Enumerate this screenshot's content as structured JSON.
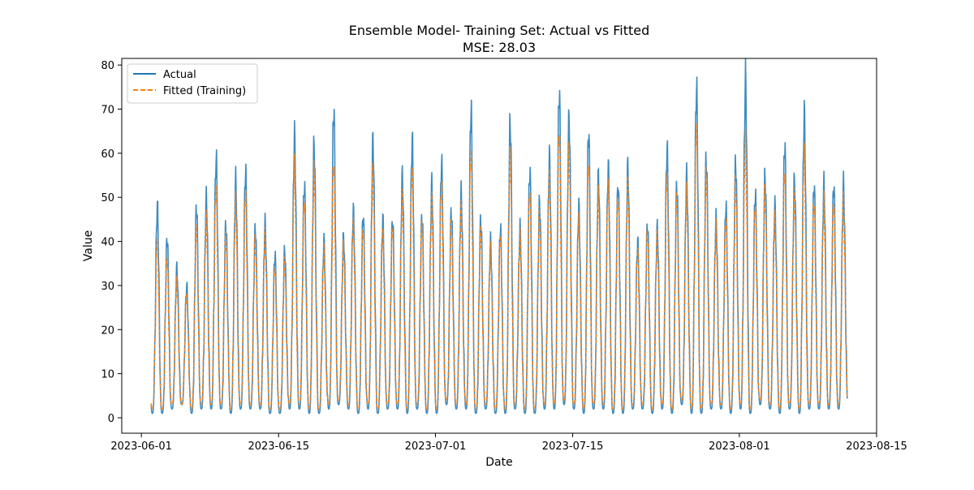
{
  "chart_data": {
    "type": "line",
    "title": "Ensemble Model- Training Set: Actual vs Fitted",
    "subtitle": "MSE: 28.03",
    "xlabel": "Date",
    "ylabel": "Value",
    "x_range": [
      "2023-05-30",
      "2023-08-15"
    ],
    "xlim_dates": [
      "2023-05-30",
      "2023-08-15"
    ],
    "ylim": [
      -3.5,
      81.5
    ],
    "x_tick_labels": [
      "2023-06-01",
      "2023-06-15",
      "2023-07-01",
      "2023-07-15",
      "2023-08-01",
      "2023-08-15"
    ],
    "y_tick_values": [
      0,
      10,
      20,
      30,
      40,
      50,
      60,
      70,
      80
    ],
    "y_tick_labels": [
      "0",
      "10",
      "20",
      "30",
      "40",
      "50",
      "60",
      "70",
      "80"
    ],
    "grid": false,
    "legend_position": "upper-left",
    "series": [
      {
        "name": "Actual",
        "color": "#1f77b4",
        "style": "solid",
        "x_start": "2023-06-02",
        "x_end": "2023-08-12",
        "daily_peaks": [
          48,
          41,
          34,
          30,
          48,
          50,
          59,
          44,
          54,
          56,
          43,
          44,
          37,
          38,
          64,
          53,
          62,
          40,
          70,
          41,
          47,
          46,
          63,
          45,
          45,
          55,
          63,
          46,
          53,
          58,
          47,
          51,
          70,
          45,
          40,
          43,
          67,
          43,
          56,
          49,
          59,
          74,
          68,
          48,
          65,
          55,
          57,
          53,
          57,
          40,
          44,
          43,
          61,
          53,
          55,
          75,
          59,
          45,
          48,
          58,
          77,
          51,
          55,
          48,
          62,
          54,
          69,
          53
        ],
        "daily_troughs": [
          1,
          1,
          2,
          3,
          1,
          2,
          2,
          2,
          1,
          2,
          2,
          2,
          1,
          1,
          2,
          2,
          1,
          1,
          2,
          3,
          2,
          1,
          2,
          1,
          2,
          2,
          1,
          2,
          1,
          1,
          3,
          2,
          2,
          1,
          2,
          1,
          1,
          2,
          1,
          1,
          2,
          2,
          3,
          2,
          1,
          2,
          2,
          1,
          1,
          2,
          2,
          1,
          2,
          1,
          3,
          1,
          1,
          2,
          2,
          1,
          2,
          1,
          3,
          2,
          1,
          2,
          1,
          2
        ]
      },
      {
        "name": "Fitted (Training)",
        "color": "#ff7f0e",
        "style": "dashed",
        "x_start": "2023-06-02",
        "x_end": "2023-08-12",
        "daily_peaks": [
          40,
          36,
          31,
          28,
          43,
          45,
          52,
          41,
          49,
          51,
          40,
          41,
          34,
          35,
          57,
          49,
          56,
          38,
          58,
          39,
          44,
          43,
          56,
          42,
          43,
          50,
          56,
          44,
          49,
          53,
          44,
          47,
          60,
          42,
          38,
          41,
          59,
          41,
          51,
          46,
          54,
          65,
          60,
          45,
          58,
          51,
          53,
          50,
          53,
          38,
          42,
          41,
          55,
          50,
          51,
          66,
          55,
          43,
          45,
          53,
          62,
          48,
          51,
          45,
          56,
          50,
          60,
          49
        ],
        "daily_troughs": [
          2,
          2,
          3,
          3,
          2,
          3,
          3,
          3,
          2,
          3,
          3,
          3,
          2,
          2,
          3,
          3,
          2,
          2,
          3,
          4,
          3,
          2,
          3,
          2,
          3,
          3,
          2,
          3,
          2,
          2,
          4,
          3,
          3,
          2,
          3,
          2,
          2,
          3,
          2,
          2,
          3,
          3,
          4,
          3,
          2,
          3,
          3,
          2,
          2,
          3,
          3,
          2,
          3,
          2,
          4,
          2,
          2,
          3,
          3,
          2,
          3,
          2,
          4,
          3,
          2,
          3,
          2,
          3
        ]
      }
    ]
  }
}
